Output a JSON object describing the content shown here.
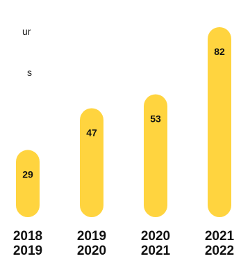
{
  "text_fragments": [
    "ur",
    "s"
  ],
  "colors": {
    "bar": "#FFD43F",
    "text": "#111111"
  },
  "chart_data": {
    "type": "bar",
    "categories": [
      [
        "2018",
        "2019"
      ],
      [
        "2019",
        "2020"
      ],
      [
        "2020",
        "2021"
      ],
      [
        "2021",
        "2022"
      ]
    ],
    "values": [
      29,
      47,
      53,
      82
    ],
    "title": "",
    "xlabel": "",
    "ylabel": "",
    "data_labels": true,
    "grid": false
  }
}
